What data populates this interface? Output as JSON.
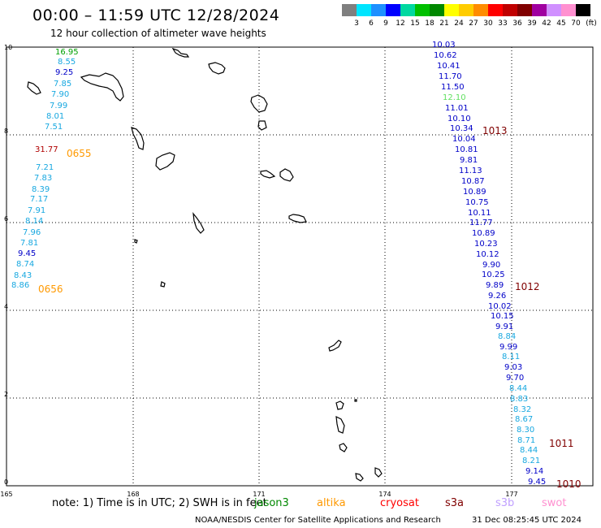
{
  "header": {
    "title": "00:00 – 11:59 UTC 12/28/2024",
    "subtitle": "12 hour collection of altimeter wave heights"
  },
  "legend": {
    "unit": "(ft)",
    "items": [
      {
        "label": "3",
        "color": "#7f7f7f"
      },
      {
        "label": "6",
        "color": "#00e5ff"
      },
      {
        "label": "9",
        "color": "#1e90ff"
      },
      {
        "label": "12",
        "color": "#0000ff"
      },
      {
        "label": "15",
        "color": "#00d8a0"
      },
      {
        "label": "18",
        "color": "#00c000"
      },
      {
        "label": "21",
        "color": "#008800"
      },
      {
        "label": "24",
        "color": "#ffff00"
      },
      {
        "label": "27",
        "color": "#ffcc00"
      },
      {
        "label": "30",
        "color": "#ff8c00"
      },
      {
        "label": "33",
        "color": "#ff0000"
      },
      {
        "label": "36",
        "color": "#c00000"
      },
      {
        "label": "39",
        "color": "#800000"
      },
      {
        "label": "42",
        "color": "#a000a0"
      },
      {
        "label": "45",
        "color": "#d090ff"
      },
      {
        "label": "70",
        "color": "#ff90d0"
      },
      {
        "label": "",
        "color": "#000000"
      }
    ]
  },
  "map": {
    "lat_ticks": [
      "10",
      "8",
      "6",
      "4",
      "2",
      "0"
    ],
    "lon_ticks": [
      "165",
      "168",
      "171",
      "174",
      "177"
    ]
  },
  "colors": {
    "lightblue": "#18a8e0",
    "darkblue": "#0000c8",
    "green": "#00a000",
    "lightgreen": "#60e060",
    "red": "#b00000",
    "orange": "#ff9900",
    "darkred": "#800000"
  },
  "readings": [
    {
      "text": "16.95",
      "color": "green"
    },
    {
      "text": "8.55",
      "color": "lightblue"
    },
    {
      "text": "9.25",
      "color": "darkblue"
    },
    {
      "text": "7.85",
      "color": "lightblue"
    },
    {
      "text": "7.90",
      "color": "lightblue"
    },
    {
      "text": "7.99",
      "color": "lightblue"
    },
    {
      "text": "8.01",
      "color": "lightblue"
    },
    {
      "text": "7.51",
      "color": "lightblue"
    },
    {
      "text": "31.77",
      "color": "red"
    },
    {
      "text": "7.21",
      "color": "lightblue"
    },
    {
      "text": "7.83",
      "color": "lightblue"
    },
    {
      "text": "8.39",
      "color": "lightblue"
    },
    {
      "text": "7.17",
      "color": "lightblue"
    },
    {
      "text": "7.91",
      "color": "lightblue"
    },
    {
      "text": "8.14",
      "color": "lightblue"
    },
    {
      "text": "7.96",
      "color": "lightblue"
    },
    {
      "text": "7.81",
      "color": "lightblue"
    },
    {
      "text": "9.45",
      "color": "darkblue"
    },
    {
      "text": "8.74",
      "color": "lightblue"
    },
    {
      "text": "8.43",
      "color": "lightblue"
    },
    {
      "text": "8.86",
      "color": "lightblue"
    },
    {
      "text": "10.03",
      "color": "darkblue"
    },
    {
      "text": "10.62",
      "color": "darkblue"
    },
    {
      "text": "10.41",
      "color": "darkblue"
    },
    {
      "text": "11.70",
      "color": "darkblue"
    },
    {
      "text": "11.50",
      "color": "darkblue"
    },
    {
      "text": "12.10",
      "color": "lightgreen"
    },
    {
      "text": "11.01",
      "color": "darkblue"
    },
    {
      "text": "10.10",
      "color": "darkblue"
    },
    {
      "text": "10.34",
      "color": "darkblue"
    },
    {
      "text": "10.04",
      "color": "darkblue"
    },
    {
      "text": "10.81",
      "color": "darkblue"
    },
    {
      "text": "9.81",
      "color": "darkblue"
    },
    {
      "text": "11.13",
      "color": "darkblue"
    },
    {
      "text": "10.87",
      "color": "darkblue"
    },
    {
      "text": "10.89",
      "color": "darkblue"
    },
    {
      "text": "10.75",
      "color": "darkblue"
    },
    {
      "text": "10.11",
      "color": "darkblue"
    },
    {
      "text": "11.77",
      "color": "darkblue"
    },
    {
      "text": "10.89",
      "color": "darkblue"
    },
    {
      "text": "10.23",
      "color": "darkblue"
    },
    {
      "text": "10.12",
      "color": "darkblue"
    },
    {
      "text": "9.90",
      "color": "darkblue"
    },
    {
      "text": "10.25",
      "color": "darkblue"
    },
    {
      "text": "9.89",
      "color": "darkblue"
    },
    {
      "text": "9.26",
      "color": "darkblue"
    },
    {
      "text": "10.02",
      "color": "darkblue"
    },
    {
      "text": "10.15",
      "color": "darkblue"
    },
    {
      "text": "9.91",
      "color": "darkblue"
    },
    {
      "text": "8.84",
      "color": "lightblue"
    },
    {
      "text": "9.99",
      "color": "darkblue"
    },
    {
      "text": "8.11",
      "color": "lightblue"
    },
    {
      "text": "9.03",
      "color": "darkblue"
    },
    {
      "text": "9.70",
      "color": "darkblue"
    },
    {
      "text": "8.44",
      "color": "lightblue"
    },
    {
      "text": "8.83",
      "color": "lightblue"
    },
    {
      "text": "8.32",
      "color": "lightblue"
    },
    {
      "text": "8.67",
      "color": "lightblue"
    },
    {
      "text": "8.30",
      "color": "lightblue"
    },
    {
      "text": "8.71",
      "color": "lightblue"
    },
    {
      "text": "8.44",
      "color": "lightblue"
    },
    {
      "text": "8.21",
      "color": "lightblue"
    },
    {
      "text": "9.14",
      "color": "darkblue"
    },
    {
      "text": "9.45",
      "color": "darkblue"
    }
  ],
  "pass_times": [
    {
      "text": "0655",
      "color": "orange"
    },
    {
      "text": "0656",
      "color": "orange"
    },
    {
      "text": "1013",
      "color": "darkred"
    },
    {
      "text": "1012",
      "color": "darkred"
    },
    {
      "text": "1011",
      "color": "darkred"
    },
    {
      "text": "1010",
      "color": "darkred"
    }
  ],
  "footer": {
    "note": "note:  1) Time is in UTC;  2) SWH is in feet",
    "satellites": [
      {
        "name": "jason3",
        "color": "#008800"
      },
      {
        "name": "altika",
        "color": "#ff9900"
      },
      {
        "name": "cryosat",
        "color": "#ff0000"
      },
      {
        "name": "s3a",
        "color": "#800000"
      },
      {
        "name": "s3b",
        "color": "#c0a0ff"
      },
      {
        "name": "swot",
        "color": "#ff90d0"
      }
    ],
    "credit": "NOAA/NESDIS Center for Satellite Applications and Research",
    "timestamp": "31 Dec 08:25:45 UTC 2024"
  }
}
